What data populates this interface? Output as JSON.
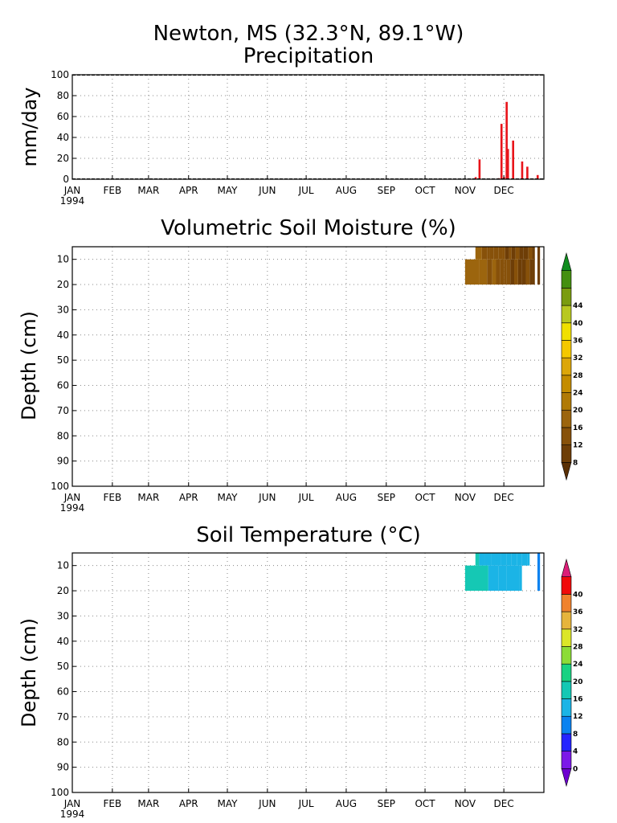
{
  "title": {
    "line1": "Newton, MS  (32.3°N, 89.1°W)",
    "line2": "Precipitation"
  },
  "months": [
    "JAN",
    "FEB",
    "MAR",
    "APR",
    "MAY",
    "JUN",
    "JUL",
    "AUG",
    "SEP",
    "OCT",
    "NOV",
    "DEC"
  ],
  "year_label": "1994",
  "panels": {
    "moisture": {
      "title": "Volumetric Soil Moisture (%)",
      "ylabel": "Depth (cm)"
    },
    "temperature": {
      "title": "Soil Temperature (°C)",
      "ylabel": "Depth (cm)"
    }
  },
  "colors": {
    "precip_bar": "#e8141a",
    "moisture_scale": [
      "#5a3005",
      "#6e3e07",
      "#87510a",
      "#9c650e",
      "#b07a06",
      "#c48c00",
      "#dca60a",
      "#f5c800",
      "#f0e000",
      "#b8c820",
      "#7a9c10",
      "#448f10",
      "#0f8c1e"
    ],
    "temperature_scale": [
      "#6e00d0",
      "#7c19e8",
      "#2424ff",
      "#0a82f0",
      "#1bb4e6",
      "#15c8b4",
      "#19d282",
      "#8cdc37",
      "#dce628",
      "#e6b43c",
      "#f0822d",
      "#f00a0a",
      "#dc1e78"
    ]
  },
  "chart_data": [
    {
      "type": "bar",
      "title": "Precipitation",
      "ylabel": "mm/day",
      "ylim": [
        0,
        100
      ],
      "yticks": [
        0,
        20,
        40,
        60,
        80,
        100
      ],
      "x_unit": "day of year 1994",
      "x": [
        313,
        316,
        331,
        333,
        335,
        337,
        338,
        342,
        349,
        353,
        361
      ],
      "values": [
        2,
        19,
        1,
        53,
        2,
        74,
        29,
        37,
        17,
        12,
        4
      ],
      "grid": true
    },
    {
      "type": "heatmap",
      "title": "Volumetric Soil Moisture (%)",
      "ylabel": "Depth (cm)",
      "ylim": [
        100,
        5
      ],
      "yticks": [
        10,
        20,
        30,
        40,
        50,
        60,
        70,
        80,
        90,
        100
      ],
      "colorbar_levels": [
        8,
        12,
        16,
        20,
        24,
        28,
        32,
        36,
        40,
        44
      ],
      "rows": [
        {
          "depth_range": [
            5,
            10
          ],
          "cells": [
            {
              "day": 313,
              "value": 18
            },
            {
              "day": 318,
              "value": 13
            },
            {
              "day": 322,
              "value": 15
            },
            {
              "day": 324,
              "value": 12
            },
            {
              "day": 327,
              "value": 15
            },
            {
              "day": 331,
              "value": 12
            },
            {
              "day": 334,
              "value": 14
            },
            {
              "day": 336,
              "value": 11
            },
            {
              "day": 339,
              "value": 13
            },
            {
              "day": 341,
              "value": 11
            },
            {
              "day": 344,
              "value": 12
            },
            {
              "day": 347,
              "value": 10
            },
            {
              "day": 350,
              "value": 9
            },
            {
              "day": 354,
              "value": 12
            },
            {
              "day": 357,
              "value": 10
            }
          ]
        },
        {
          "depth_range": [
            10,
            20
          ],
          "cells": [
            {
              "day": 305,
              "value": 18
            },
            {
              "day": 316,
              "value": 17
            },
            {
              "day": 322,
              "value": 14
            },
            {
              "day": 326,
              "value": 16
            },
            {
              "day": 329,
              "value": 13
            },
            {
              "day": 332,
              "value": 15
            },
            {
              "day": 335,
              "value": 12
            },
            {
              "day": 337,
              "value": 14
            },
            {
              "day": 340,
              "value": 11
            },
            {
              "day": 343,
              "value": 12
            },
            {
              "day": 346,
              "value": 10
            },
            {
              "day": 349,
              "value": 9
            },
            {
              "day": 352,
              "value": 12
            },
            {
              "day": 355,
              "value": 10
            },
            {
              "day": 357,
              "value": 10
            }
          ]
        },
        {
          "depth_range": [
            5,
            20
          ],
          "cells": [
            {
              "day": 361,
              "value": 11
            }
          ]
        }
      ],
      "grid": true
    },
    {
      "type": "heatmap",
      "title": "Soil Temperature (°C)",
      "ylabel": "Depth (cm)",
      "ylim": [
        100,
        5
      ],
      "yticks": [
        10,
        20,
        30,
        40,
        50,
        60,
        70,
        80,
        90,
        100
      ],
      "colorbar_levels": [
        0,
        4,
        8,
        12,
        16,
        20,
        24,
        28,
        32,
        36,
        40
      ],
      "rows": [
        {
          "depth_range": [
            5,
            10
          ],
          "cells": [
            {
              "day": 313,
              "value": 17
            },
            {
              "day": 316,
              "value": 15
            },
            {
              "day": 320,
              "value": 13
            },
            {
              "day": 325,
              "value": 15
            },
            {
              "day": 329,
              "value": 13
            },
            {
              "day": 333,
              "value": 14
            },
            {
              "day": 337,
              "value": 13
            },
            {
              "day": 341,
              "value": 15
            },
            {
              "day": 345,
              "value": 13
            },
            {
              "day": 349,
              "value": 14
            },
            {
              "day": 353,
              "value": 13
            }
          ]
        },
        {
          "depth_range": [
            10,
            20
          ],
          "cells": [
            {
              "day": 305,
              "value": 17
            },
            {
              "day": 323,
              "value": 14
            },
            {
              "day": 331,
              "value": 15
            },
            {
              "day": 337,
              "value": 14
            },
            {
              "day": 347,
              "value": 13
            }
          ]
        },
        {
          "depth_range": [
            5,
            20
          ],
          "cells": [
            {
              "day": 361,
              "value": 9
            }
          ]
        }
      ],
      "grid": true
    }
  ]
}
